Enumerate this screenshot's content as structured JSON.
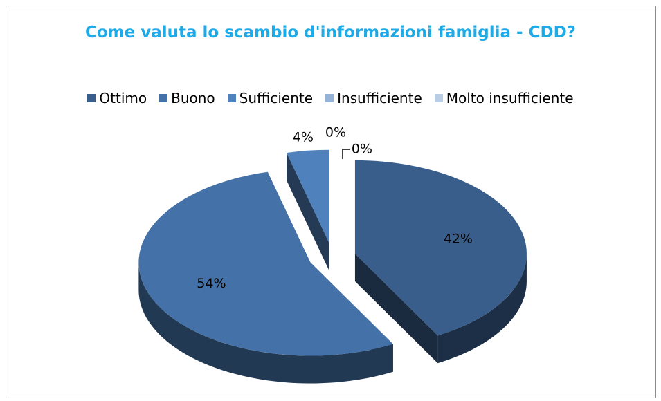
{
  "chart_data": {
    "type": "pie3d",
    "title": "Come valuta lo scambio d'informazioni famiglia - CDD?",
    "categories": [
      "Ottimo",
      "Buono",
      "Sufficiente",
      "Insufficiente",
      "Molto insufficiente"
    ],
    "values": [
      42,
      54,
      4,
      0,
      0
    ],
    "value_labels": [
      "42%",
      "54%",
      "4%",
      "0%",
      "0%"
    ],
    "colors": [
      "#395e8c",
      "#4472a8",
      "#4f81bd",
      "#95b3d7",
      "#b9cde5"
    ],
    "legend": "top"
  }
}
